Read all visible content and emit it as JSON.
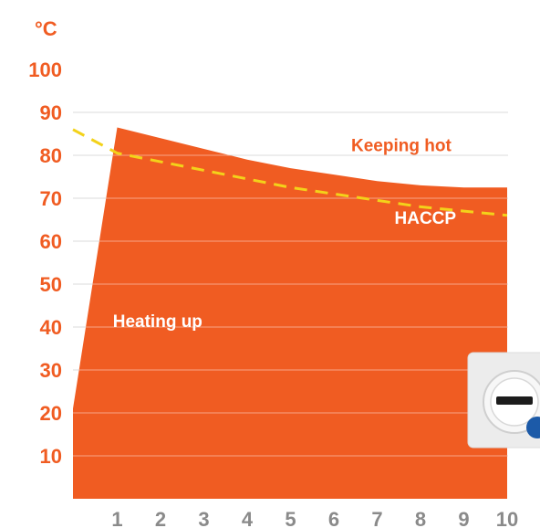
{
  "chart_data": {
    "type": "area",
    "ylabel": "°C",
    "ylim": [
      0,
      100
    ],
    "yticks": [
      10,
      20,
      30,
      40,
      50,
      60,
      70,
      80,
      90,
      100
    ],
    "xticks": [
      1,
      2,
      3,
      4,
      5,
      6,
      7,
      8,
      9,
      10
    ],
    "xlim": [
      -0.1,
      10
    ],
    "grid": true,
    "series": [
      {
        "style": "filled-area",
        "x": [
          -0.1,
          1,
          2,
          3,
          4,
          5,
          6,
          7,
          8,
          9,
          10
        ],
        "values": [
          21,
          86.5,
          84,
          81.5,
          79,
          77,
          75.5,
          74,
          73,
          72.5,
          72.5
        ]
      },
      {
        "style": "dashed-line",
        "x": [
          -0.1,
          1,
          2,
          3,
          4,
          5,
          6,
          7,
          8,
          9,
          10
        ],
        "values": [
          86,
          80.5,
          78.5,
          76.5,
          74.5,
          72.5,
          71,
          69.5,
          68,
          67,
          66
        ]
      }
    ],
    "annotations": [
      {
        "text": "Keeping hot",
        "x": 6.4,
        "y": 81
      },
      {
        "text": "HACCP",
        "x": 7.4,
        "y": 64
      },
      {
        "text": "Heating up",
        "x": 0.9,
        "y": 40
      }
    ]
  },
  "colors": {
    "area": "#f05c22",
    "axis_text": "#f05c22",
    "xaxis_text": "#8a8a8a",
    "dashed": "#f3d21a",
    "grid": "#bdbdbd",
    "annotation_light": "#ffffff"
  },
  "icons": {
    "corner_device": "thermostat-dial-icon"
  }
}
